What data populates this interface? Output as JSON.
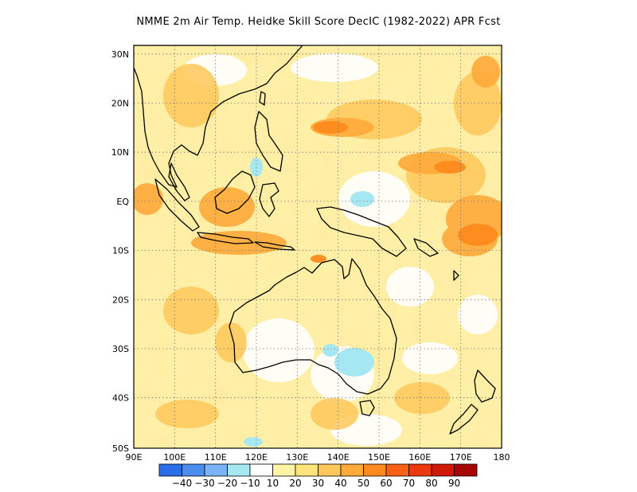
{
  "title": "NMME  2m Air Temp. Heidke Skill Score DecIC (1982-2022) APR Fcst",
  "map": {
    "lon_range": [
      90,
      180
    ],
    "lat_range": [
      -50,
      32
    ],
    "lon_ticks": [
      "90E",
      "100E",
      "110E",
      "120E",
      "130E",
      "140E",
      "150E",
      "160E",
      "170E",
      "180"
    ],
    "lat_ticks": [
      "30N",
      "20N",
      "10N",
      "EQ",
      "10S",
      "20S",
      "30S",
      "40S",
      "50S"
    ],
    "gridlines": "dotted"
  },
  "colorbar": {
    "colors": [
      "#2a6fe8",
      "#4a8ef0",
      "#7ab2f5",
      "#a6e8f2",
      "#ffffff",
      "#fff3a6",
      "#ffe47a",
      "#ffc85a",
      "#ffaa3a",
      "#ff8a1e",
      "#fb6014",
      "#ec3a0e",
      "#d01a08",
      "#a80606"
    ],
    "labels": [
      "-40",
      "-30",
      "-20",
      "-10",
      "10",
      "20",
      "30",
      "40",
      "50",
      "60",
      "70",
      "80",
      "90"
    ]
  }
}
